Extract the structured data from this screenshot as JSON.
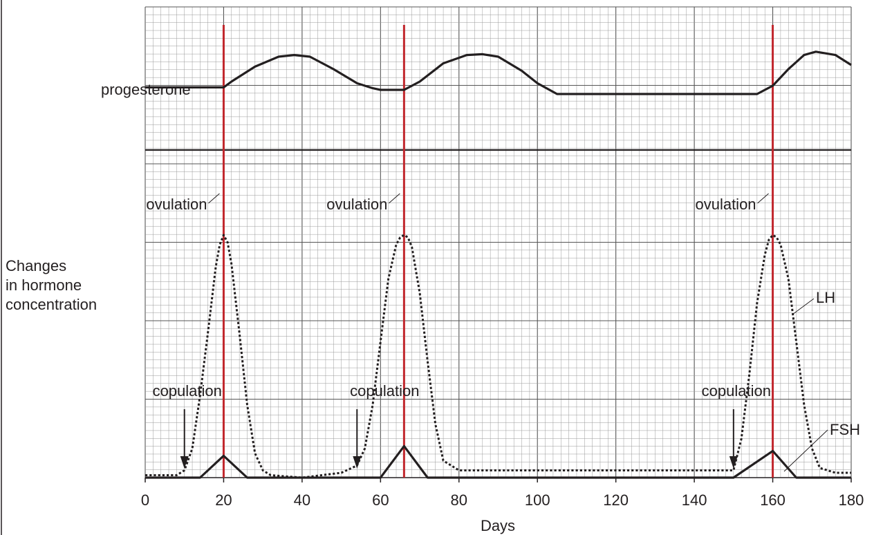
{
  "chart_data": {
    "type": "line",
    "xlabel": "Days",
    "ylabel": [
      "Changes",
      "in hormone",
      "concentration"
    ],
    "xlim": [
      0,
      180
    ],
    "x_ticks": [
      0,
      20,
      40,
      60,
      80,
      100,
      120,
      140,
      160,
      180
    ],
    "grid": true,
    "colors": {
      "grid_minor": "#9a9a9a",
      "grid_major": "#555555",
      "curve": "#231f20",
      "ovulation_line": "#c1272d"
    },
    "ovulation_days": [
      20,
      66,
      160
    ],
    "copulation_days": [
      10,
      54,
      150
    ],
    "labels": {
      "ovulation": "ovulation",
      "copulation": "copulation",
      "progesterone": "progesterone",
      "lh": "LH",
      "fsh": "FSH"
    },
    "series": [
      {
        "name": "progesterone",
        "style": "solid",
        "x": [
          0,
          20,
          22,
          28,
          34,
          38,
          42,
          48,
          54,
          58,
          60,
          66,
          70,
          76,
          82,
          86,
          90,
          96,
          100,
          105,
          130,
          156,
          160,
          164,
          168,
          171,
          176,
          180
        ],
        "y": [
          0.53,
          0.53,
          0.6,
          0.78,
          0.9,
          0.92,
          0.9,
          0.75,
          0.58,
          0.52,
          0.5,
          0.5,
          0.6,
          0.82,
          0.92,
          0.93,
          0.9,
          0.73,
          0.58,
          0.45,
          0.45,
          0.45,
          0.55,
          0.75,
          0.92,
          0.96,
          0.92,
          0.8
        ]
      },
      {
        "name": "LH",
        "style": "dotted",
        "x": [
          0,
          8,
          10,
          12,
          14,
          16,
          18,
          19,
          20,
          21,
          22,
          24,
          26,
          28,
          30,
          32,
          40,
          50,
          54,
          56,
          58,
          60,
          62,
          64,
          65,
          66,
          67,
          68,
          70,
          72,
          74,
          76,
          80,
          100,
          140,
          150,
          152,
          154,
          156,
          158,
          159,
          160,
          161,
          162,
          164,
          166,
          168,
          170,
          172,
          176,
          180
        ],
        "y": [
          0.01,
          0.01,
          0.03,
          0.12,
          0.34,
          0.6,
          0.87,
          0.96,
          1.0,
          0.97,
          0.88,
          0.6,
          0.3,
          0.1,
          0.03,
          0.01,
          0.0,
          0.02,
          0.05,
          0.12,
          0.3,
          0.56,
          0.82,
          0.96,
          0.99,
          1.0,
          0.99,
          0.95,
          0.76,
          0.48,
          0.22,
          0.07,
          0.03,
          0.03,
          0.03,
          0.03,
          0.16,
          0.42,
          0.72,
          0.92,
          0.98,
          1.0,
          0.99,
          0.96,
          0.82,
          0.56,
          0.3,
          0.12,
          0.04,
          0.02,
          0.02
        ]
      },
      {
        "name": "FSH",
        "style": "solid",
        "x": [
          0,
          14,
          20,
          26,
          60,
          66,
          72,
          150,
          160,
          166,
          180
        ],
        "y": [
          0.0,
          0.0,
          0.09,
          0.0,
          0.0,
          0.13,
          0.0,
          0.0,
          0.11,
          0.0,
          0.0
        ]
      }
    ]
  }
}
